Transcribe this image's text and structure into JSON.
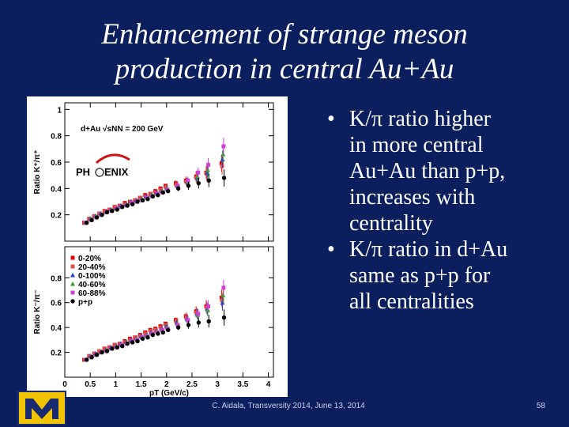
{
  "slide": {
    "title_line1": "Enhancement of strange meson",
    "title_line2": "production in central Au+Au",
    "bullets": [
      {
        "line1": "K/π ratio higher",
        "line2": "in more central",
        "line3": "Au+Au than p+p,",
        "line4": "increases with",
        "line5": "centrality"
      },
      {
        "line1": "K/π ratio in d+Au",
        "line2": "same as p+p for",
        "line3": "all centralities"
      }
    ],
    "bullet_symbol": "•",
    "footer": "C. Aidala, Transversity 2014, June 13, 2014",
    "page_number": "58"
  },
  "colors": {
    "background": "#0b1f5e",
    "text": "#ffffff",
    "series": [
      "#e00000",
      "#e05050",
      "#2040d0",
      "#30a030",
      "#d040d0",
      "#000000"
    ]
  },
  "chart_data": [
    {
      "type": "scatter",
      "panel": "top",
      "ylabel": "Ratio K⁺/π⁺",
      "annotation": "d+Au √sNN = 200 GeV",
      "logo_text_left": "PH",
      "logo_text_right": "ENIX",
      "xlim": [
        0,
        4.1
      ],
      "ylim": [
        0,
        1.05
      ],
      "yticks": [
        "0.2",
        "0.4",
        "0.6",
        "0.8",
        "1"
      ],
      "x": [
        0.4,
        0.5,
        0.6,
        0.7,
        0.8,
        0.9,
        1.0,
        1.1,
        1.2,
        1.3,
        1.4,
        1.5,
        1.6,
        1.7,
        1.8,
        1.9,
        2.0,
        2.2,
        2.4,
        2.6,
        2.8,
        3.1
      ],
      "series": [
        {
          "name": "0-20%",
          "marker": "square",
          "values": [
            0.14,
            0.17,
            0.19,
            0.21,
            0.23,
            0.24,
            0.26,
            0.27,
            0.29,
            0.3,
            0.31,
            0.33,
            0.35,
            0.36,
            0.38,
            0.4,
            0.42,
            0.44,
            0.46,
            0.49,
            0.52,
            0.59
          ]
        },
        {
          "name": "20-40%",
          "marker": "square",
          "values": [
            0.14,
            0.17,
            0.19,
            0.21,
            0.23,
            0.24,
            0.26,
            0.27,
            0.28,
            0.3,
            0.31,
            0.33,
            0.34,
            0.36,
            0.37,
            0.39,
            0.41,
            0.43,
            0.45,
            0.48,
            0.51,
            0.57
          ]
        },
        {
          "name": "0-100%",
          "marker": "triangle",
          "values": [
            0.14,
            0.17,
            0.19,
            0.21,
            0.22,
            0.24,
            0.25,
            0.27,
            0.28,
            0.3,
            0.31,
            0.32,
            0.34,
            0.35,
            0.37,
            0.38,
            0.4,
            0.42,
            0.45,
            0.48,
            0.52,
            0.62
          ]
        },
        {
          "name": "40-60%",
          "marker": "triangle",
          "values": [
            0.14,
            0.17,
            0.19,
            0.2,
            0.22,
            0.24,
            0.25,
            0.26,
            0.28,
            0.29,
            0.3,
            0.32,
            0.33,
            0.35,
            0.36,
            0.38,
            0.4,
            0.42,
            0.45,
            0.49,
            0.54,
            0.66
          ]
        },
        {
          "name": "60-88%",
          "marker": "square",
          "values": [
            0.14,
            0.16,
            0.18,
            0.2,
            0.22,
            0.23,
            0.25,
            0.26,
            0.27,
            0.29,
            0.3,
            0.31,
            0.33,
            0.34,
            0.36,
            0.37,
            0.39,
            0.42,
            0.46,
            0.52,
            0.58,
            0.72
          ]
        },
        {
          "name": "p+p",
          "marker": "circle",
          "values": [
            0.14,
            0.16,
            0.18,
            0.2,
            0.22,
            0.23,
            0.24,
            0.26,
            0.27,
            0.28,
            0.3,
            0.31,
            0.32,
            0.34,
            0.35,
            0.37,
            0.38,
            0.4,
            0.42,
            0.44,
            0.46,
            0.48
          ]
        }
      ]
    },
    {
      "type": "scatter",
      "panel": "bottom",
      "ylabel": "Ratio K⁻/π⁻",
      "xlabel": "pT (GeV/c)",
      "xlim": [
        0,
        4.1
      ],
      "ylim": [
        0,
        1.05
      ],
      "xticks": [
        "0",
        "0.5",
        "1",
        "1.5",
        "2",
        "2.5",
        "3",
        "3.5",
        "4"
      ],
      "yticks": [
        "0.2",
        "0.4",
        "0.6",
        "0.8"
      ],
      "x": [
        0.4,
        0.5,
        0.6,
        0.7,
        0.8,
        0.9,
        1.0,
        1.1,
        1.2,
        1.3,
        1.4,
        1.5,
        1.6,
        1.7,
        1.8,
        1.9,
        2.0,
        2.2,
        2.4,
        2.6,
        2.8,
        3.1
      ],
      "series": [
        {
          "name": "0-20%",
          "marker": "square",
          "values": [
            0.14,
            0.17,
            0.19,
            0.21,
            0.23,
            0.24,
            0.26,
            0.27,
            0.29,
            0.31,
            0.32,
            0.34,
            0.36,
            0.38,
            0.39,
            0.41,
            0.43,
            0.46,
            0.49,
            0.53,
            0.57,
            0.64
          ]
        },
        {
          "name": "20-40%",
          "marker": "square",
          "values": [
            0.14,
            0.17,
            0.19,
            0.21,
            0.23,
            0.24,
            0.26,
            0.27,
            0.28,
            0.3,
            0.32,
            0.33,
            0.35,
            0.37,
            0.38,
            0.4,
            0.42,
            0.45,
            0.48,
            0.52,
            0.56,
            0.62
          ]
        },
        {
          "name": "0-100%",
          "marker": "triangle",
          "values": [
            0.14,
            0.17,
            0.19,
            0.2,
            0.22,
            0.24,
            0.25,
            0.27,
            0.28,
            0.3,
            0.31,
            0.33,
            0.34,
            0.36,
            0.37,
            0.39,
            0.41,
            0.44,
            0.47,
            0.51,
            0.55,
            0.6
          ]
        },
        {
          "name": "40-60%",
          "marker": "triangle",
          "values": [
            0.14,
            0.17,
            0.18,
            0.2,
            0.22,
            0.23,
            0.25,
            0.26,
            0.28,
            0.29,
            0.31,
            0.32,
            0.34,
            0.35,
            0.37,
            0.38,
            0.4,
            0.43,
            0.46,
            0.5,
            0.54,
            0.66
          ]
        },
        {
          "name": "60-88%",
          "marker": "square",
          "values": [
            0.14,
            0.16,
            0.18,
            0.2,
            0.21,
            0.23,
            0.24,
            0.26,
            0.27,
            0.29,
            0.3,
            0.32,
            0.33,
            0.35,
            0.36,
            0.38,
            0.39,
            0.42,
            0.46,
            0.51,
            0.57,
            0.72
          ]
        },
        {
          "name": "p+p",
          "marker": "circle",
          "values": [
            0.14,
            0.16,
            0.18,
            0.2,
            0.21,
            0.23,
            0.24,
            0.25,
            0.27,
            0.28,
            0.29,
            0.31,
            0.32,
            0.34,
            0.35,
            0.36,
            0.38,
            0.4,
            0.42,
            0.44,
            0.45,
            0.48
          ]
        }
      ]
    }
  ]
}
